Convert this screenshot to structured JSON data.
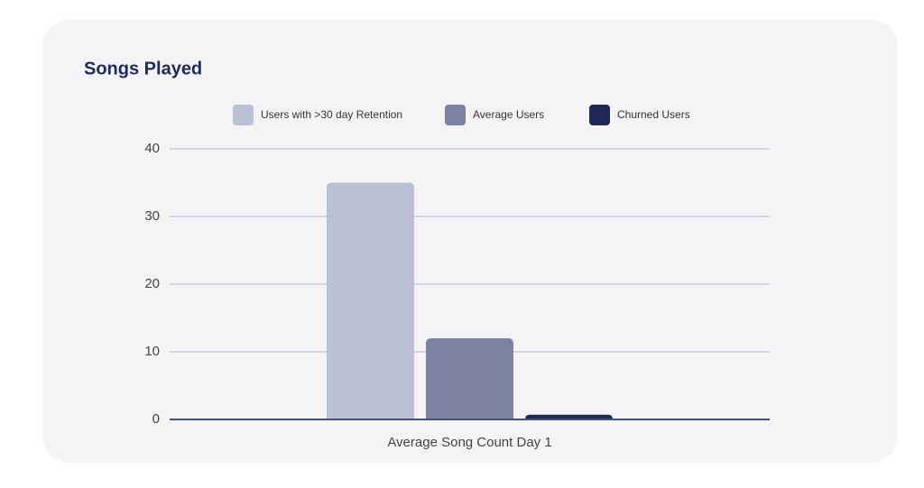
{
  "chart_data": {
    "type": "bar",
    "title": "Songs Played",
    "categories": [
      "Average Song Count Day 1"
    ],
    "series": [
      {
        "name": "Users with >30 day Retention",
        "color": "#bbc0d4",
        "values": [
          35
        ]
      },
      {
        "name": "Average Users",
        "color": "#7e82a0",
        "values": [
          12
        ]
      },
      {
        "name": "Churned Users",
        "color": "#1f2757",
        "values": [
          0.7
        ]
      }
    ],
    "ylim": [
      0,
      40
    ],
    "yticks": [
      0,
      10,
      20,
      30,
      40
    ],
    "grid": true,
    "legend_position": "top"
  }
}
